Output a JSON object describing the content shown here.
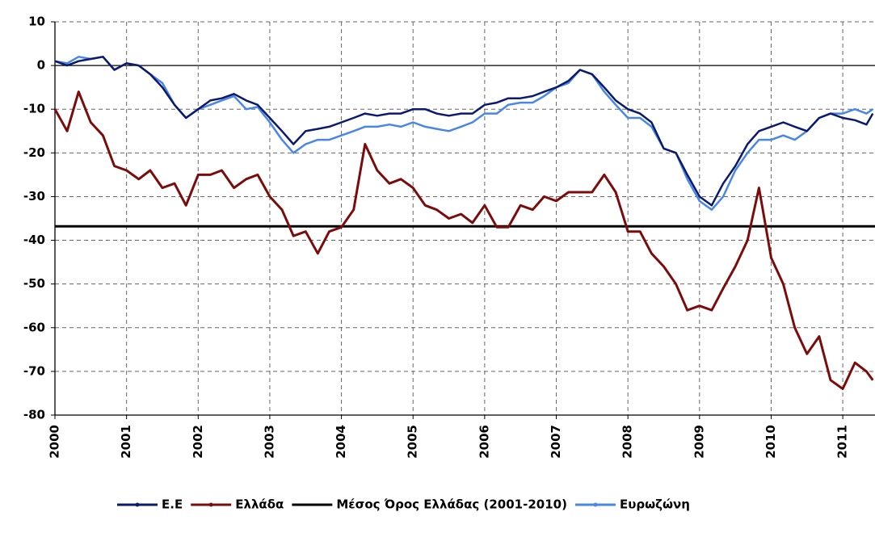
{
  "chart_data": {
    "type": "line",
    "x": [
      2000.0,
      2000.17,
      2000.33,
      2000.5,
      2000.67,
      2000.83,
      2001.0,
      2001.17,
      2001.33,
      2001.5,
      2001.67,
      2001.83,
      2002.0,
      2002.17,
      2002.33,
      2002.5,
      2002.67,
      2002.83,
      2003.0,
      2003.17,
      2003.33,
      2003.5,
      2003.67,
      2003.83,
      2004.0,
      2004.17,
      2004.33,
      2004.5,
      2004.67,
      2004.83,
      2005.0,
      2005.17,
      2005.33,
      2005.5,
      2005.67,
      2005.83,
      2006.0,
      2006.17,
      2006.33,
      2006.5,
      2006.67,
      2006.83,
      2007.0,
      2007.17,
      2007.33,
      2007.5,
      2007.67,
      2007.83,
      2008.0,
      2008.17,
      2008.33,
      2008.5,
      2008.67,
      2008.83,
      2009.0,
      2009.17,
      2009.33,
      2009.5,
      2009.67,
      2009.83,
      2010.0,
      2010.17,
      2010.33,
      2010.5,
      2010.67,
      2010.83,
      2011.0,
      2011.17,
      2011.33,
      2011.42
    ],
    "series": [
      {
        "name": "Ε.Ε",
        "color": "#0b1a6e",
        "values": [
          1,
          0,
          1,
          1.5,
          2,
          -1,
          0.5,
          0,
          -2,
          -5,
          -9,
          -12,
          -10,
          -8,
          -7.5,
          -6.5,
          -8,
          -9,
          -12,
          -15,
          -18,
          -15,
          -14.5,
          -14,
          -13,
          -12,
          -11,
          -11.5,
          -11,
          -11,
          -10,
          -10,
          -11,
          -11.5,
          -11,
          -11,
          -9,
          -8.5,
          -7.5,
          -7.5,
          -7,
          -6,
          -5,
          -3.5,
          -1,
          -2,
          -5,
          -8,
          -10,
          -11,
          -13,
          -19,
          -20,
          -25,
          -30,
          -32,
          -27,
          -23,
          -18,
          -15,
          -14,
          -13,
          -14,
          -15,
          -12,
          -11,
          -12,
          -12.5,
          -13.5,
          -11
        ]
      },
      {
        "name": "Ελλάδα",
        "color": "#7b0c0c",
        "values": [
          -10,
          -15,
          -6,
          -13,
          -16,
          -23,
          -24,
          -26,
          -24,
          -28,
          -27,
          -32,
          -25,
          -25,
          -24,
          -28,
          -26,
          -25,
          -30,
          -33,
          -39,
          -38,
          -43,
          -38,
          -37,
          -33,
          -18,
          -24,
          -27,
          -26,
          -28,
          -32,
          -33,
          -35,
          -34,
          -36,
          -32,
          -37,
          -37,
          -32,
          -33,
          -30,
          -31,
          -29,
          -29,
          -29,
          -25,
          -29,
          -38,
          -38,
          -43,
          -46,
          -50,
          -56,
          -55,
          -56,
          -51,
          -46,
          -40,
          -28,
          -44,
          -50,
          -60,
          -66,
          -62,
          -72,
          -74,
          -68,
          -70,
          -72
        ]
      },
      {
        "name": "Ευρωζώνη",
        "color": "#4a86e8",
        "values": [
          1,
          0.5,
          2,
          1.5,
          2,
          -1,
          0.5,
          0,
          -2,
          -4,
          -9,
          -12,
          -10,
          -9,
          -8,
          -7,
          -10,
          -9.5,
          -13,
          -17,
          -20,
          -18,
          -17,
          -17,
          -16,
          -15,
          -14,
          -14,
          -13.5,
          -14,
          -13,
          -14,
          -14.5,
          -15,
          -14,
          -13,
          -11,
          -11,
          -9,
          -8.5,
          -8.5,
          -7,
          -5,
          -4,
          -1,
          -2,
          -6,
          -9,
          -12,
          -12,
          -14,
          -19,
          -20,
          -26,
          -31,
          -33,
          -30,
          -24,
          -20,
          -17,
          -17,
          -16,
          -17,
          -15,
          -12,
          -11,
          -11,
          -10,
          -11,
          -10
        ]
      }
    ],
    "reference_lines": [
      {
        "name": "Μέσος Όρος Ελλάδας (2001-2010)",
        "value": -36.8,
        "color": "#000000"
      }
    ],
    "xlim": [
      2000,
      2011.45
    ],
    "xticks": [
      2000,
      2001,
      2002,
      2003,
      2004,
      2005,
      2006,
      2007,
      2008,
      2009,
      2010,
      2011
    ],
    "ylim": [
      -80,
      10
    ],
    "yticks": [
      10,
      0,
      -10,
      -20,
      -30,
      -40,
      -50,
      -60,
      -70,
      -80
    ],
    "grid": true
  }
}
